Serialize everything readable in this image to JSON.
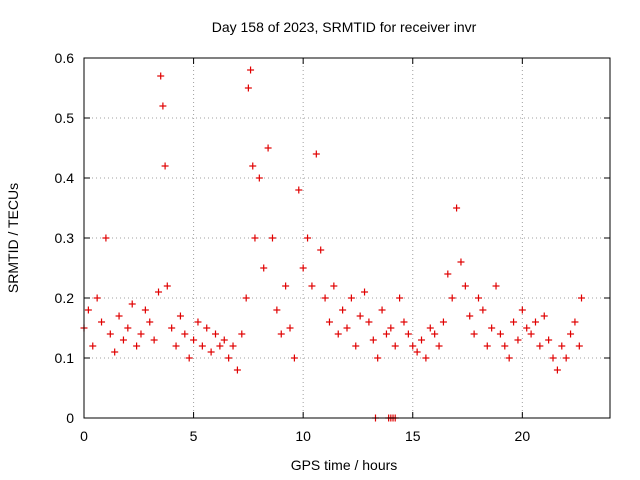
{
  "chart_data": {
    "type": "scatter",
    "title": "Day 158 of 2023, SRMTID for receiver invr",
    "xlabel": "GPS time / hours",
    "ylabel": "SRMTID / TECUs",
    "xlim": [
      0,
      24
    ],
    "ylim": [
      0,
      0.6
    ],
    "xticks": [
      0,
      5,
      10,
      15,
      20
    ],
    "yticks": [
      0,
      0.1,
      0.2,
      0.3,
      0.4,
      0.5,
      0.6
    ],
    "xtick_labels": [
      "0",
      "5",
      "10",
      "15",
      "20"
    ],
    "ytick_labels": [
      "0",
      "0.1",
      "0.2",
      "0.3",
      "0.4",
      "0.5",
      "0.6"
    ],
    "grid": true,
    "marker": "+",
    "color": "#e00000",
    "series": [
      {
        "name": "SRMTID",
        "x": [
          0.0,
          0.2,
          0.4,
          0.6,
          0.8,
          1.0,
          1.2,
          1.4,
          1.6,
          1.8,
          2.0,
          2.2,
          2.4,
          2.6,
          2.8,
          3.0,
          3.2,
          3.4,
          3.5,
          3.6,
          3.7,
          3.8,
          4.0,
          4.2,
          4.4,
          4.6,
          4.8,
          5.0,
          5.2,
          5.4,
          5.6,
          5.8,
          6.0,
          6.2,
          6.4,
          6.6,
          6.8,
          7.0,
          7.2,
          7.4,
          7.5,
          7.6,
          7.7,
          7.8,
          8.0,
          8.2,
          8.4,
          8.6,
          8.8,
          9.0,
          9.2,
          9.4,
          9.6,
          9.8,
          10.0,
          10.2,
          10.4,
          10.6,
          10.8,
          11.0,
          11.2,
          11.4,
          11.6,
          11.8,
          12.0,
          12.2,
          12.4,
          12.6,
          12.8,
          13.0,
          13.2,
          13.4,
          13.6,
          13.8,
          14.0,
          14.2,
          14.4,
          14.6,
          14.8,
          15.0,
          15.2,
          15.4,
          15.6,
          15.8,
          16.0,
          16.2,
          16.4,
          16.6,
          16.8,
          17.0,
          17.2,
          17.4,
          17.6,
          17.8,
          18.0,
          18.2,
          18.4,
          18.6,
          18.8,
          19.0,
          19.2,
          19.4,
          19.6,
          19.8,
          20.0,
          20.2,
          20.4,
          20.6,
          20.8,
          21.0,
          21.2,
          21.4,
          21.6,
          21.8,
          22.0,
          22.2,
          22.4,
          22.6,
          22.7,
          13.3,
          13.9,
          14.0,
          14.1,
          14.2
        ],
        "y": [
          0.15,
          0.18,
          0.12,
          0.2,
          0.16,
          0.3,
          0.14,
          0.11,
          0.17,
          0.13,
          0.15,
          0.19,
          0.12,
          0.14,
          0.18,
          0.16,
          0.13,
          0.21,
          0.57,
          0.52,
          0.42,
          0.22,
          0.15,
          0.12,
          0.17,
          0.14,
          0.1,
          0.13,
          0.16,
          0.12,
          0.15,
          0.11,
          0.14,
          0.12,
          0.13,
          0.1,
          0.12,
          0.08,
          0.14,
          0.2,
          0.55,
          0.58,
          0.42,
          0.3,
          0.4,
          0.25,
          0.45,
          0.3,
          0.18,
          0.14,
          0.22,
          0.15,
          0.1,
          0.38,
          0.25,
          0.3,
          0.22,
          0.44,
          0.28,
          0.2,
          0.16,
          0.22,
          0.14,
          0.18,
          0.15,
          0.2,
          0.12,
          0.17,
          0.21,
          0.16,
          0.13,
          0.1,
          0.18,
          0.14,
          0.15,
          0.12,
          0.2,
          0.16,
          0.14,
          0.12,
          0.11,
          0.13,
          0.1,
          0.15,
          0.14,
          0.12,
          0.16,
          0.24,
          0.2,
          0.35,
          0.26,
          0.22,
          0.17,
          0.14,
          0.2,
          0.18,
          0.12,
          0.15,
          0.22,
          0.14,
          0.12,
          0.1,
          0.16,
          0.13,
          0.18,
          0.15,
          0.14,
          0.16,
          0.12,
          0.17,
          0.13,
          0.1,
          0.08,
          0.12,
          0.1,
          0.14,
          0.16,
          0.12,
          0.2,
          0.0,
          0.0,
          0.0,
          0.0,
          0.0
        ]
      }
    ]
  }
}
